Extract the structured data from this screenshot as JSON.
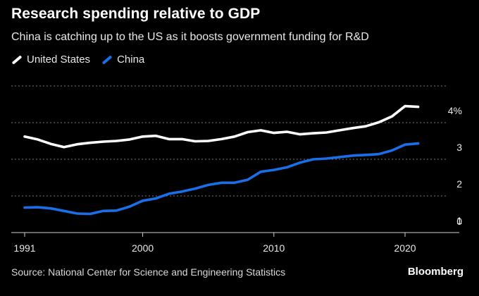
{
  "header": {
    "title": "Research spending relative to GDP",
    "subtitle": "China is catching up to the US as it boosts government funding for R&D"
  },
  "footer": {
    "source": "Source: National Center for Science and Engineering Statistics",
    "brand": "Bloomberg"
  },
  "chart_data": {
    "type": "line",
    "title": "Research spending relative to GDP",
    "subtitle": "China is catching up to the US as it boosts government funding for R&D",
    "x": [
      1991,
      1992,
      1993,
      1994,
      1995,
      1996,
      1997,
      1998,
      1999,
      2000,
      2001,
      2002,
      2003,
      2004,
      2005,
      2006,
      2007,
      2008,
      2009,
      2010,
      2011,
      2012,
      2013,
      2014,
      2015,
      2016,
      2017,
      2018,
      2019,
      2020,
      2021
    ],
    "series": [
      {
        "name": "United States",
        "color": "#ffffff",
        "values": [
          2.62,
          2.54,
          2.42,
          2.33,
          2.41,
          2.45,
          2.48,
          2.5,
          2.54,
          2.62,
          2.64,
          2.55,
          2.55,
          2.49,
          2.5,
          2.55,
          2.62,
          2.74,
          2.79,
          2.72,
          2.75,
          2.68,
          2.71,
          2.73,
          2.79,
          2.85,
          2.9,
          3.01,
          3.17,
          3.45,
          3.43
        ]
      },
      {
        "name": "China",
        "color": "#1a6fe8",
        "values": [
          0.68,
          0.69,
          0.66,
          0.59,
          0.52,
          0.51,
          0.59,
          0.6,
          0.71,
          0.87,
          0.93,
          1.06,
          1.12,
          1.2,
          1.3,
          1.36,
          1.36,
          1.44,
          1.66,
          1.71,
          1.78,
          1.91,
          2.0,
          2.02,
          2.06,
          2.1,
          2.12,
          2.14,
          2.24,
          2.4,
          2.43
        ]
      }
    ],
    "xlabel": "",
    "ylabel": "",
    "x_ticks": [
      1991,
      2000,
      2010,
      2020
    ],
    "x_tick_labels": [
      "1991",
      "2000",
      "2010",
      "2020"
    ],
    "y_ticks": [
      0,
      1,
      2,
      3,
      4
    ],
    "y_tick_labels": [
      "0",
      "1",
      "2",
      "3",
      "4%"
    ],
    "xlim": [
      1991,
      2022.5
    ],
    "ylim": [
      0,
      4
    ],
    "grid": true,
    "legend": "top-left"
  }
}
